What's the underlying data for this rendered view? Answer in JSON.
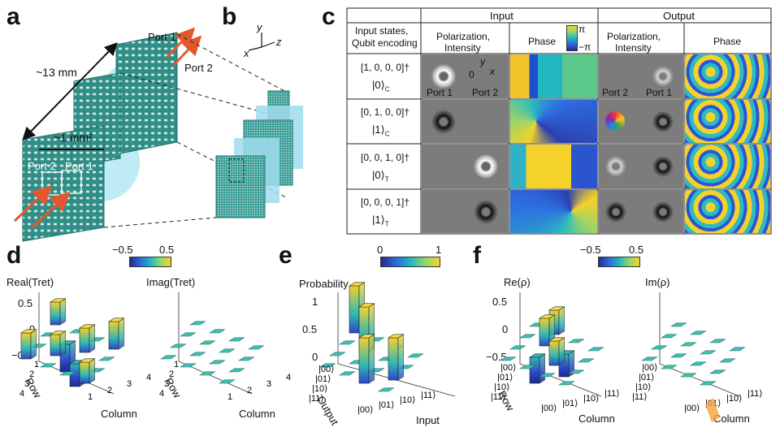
{
  "panels": {
    "a": "a",
    "b": "b",
    "c": "c",
    "d": "d",
    "e": "e",
    "f": "f"
  },
  "panel_a": {
    "port1": "Port 1",
    "port2": "Port 2",
    "size_total": "~13 mm",
    "size_area": "~1 mm²",
    "port2_inner": "Port 2",
    "port1_inner": "Port 1"
  },
  "panel_b": {
    "axis_x": "x",
    "axis_y": "y",
    "axis_z": "z"
  },
  "panel_c": {
    "header_input": "Input",
    "header_output": "Output",
    "col1": "Input states,",
    "col1b": "Qubit encoding",
    "col_pol": "Polarization,",
    "col_pol_b": "Intensity",
    "col_phase": "Phase",
    "col_pol_out": "Polarization,",
    "col_pol_out_b": "Intensity",
    "col_phase_out": "Phase",
    "pi": "π",
    "minus_pi": "−π",
    "axis_y": "y",
    "axis_x": "x",
    "origin": "0",
    "rows": [
      {
        "vector": "[1, 0, 0, 0]†",
        "ket": "|0⟩",
        "sub": "C",
        "in_port_left": "Port 1",
        "in_port_right": "Port 2",
        "out_port_left": "Port 2",
        "out_port_right": "Port 1"
      },
      {
        "vector": "[0, 1, 0, 0]†",
        "ket": "|1⟩",
        "sub": "C"
      },
      {
        "vector": "[0, 0, 1, 0]†",
        "ket": "|0⟩",
        "sub": "T"
      },
      {
        "vector": "[0, 0, 0, 1]†",
        "ket": "|1⟩",
        "sub": "T"
      }
    ]
  },
  "panel_d": {
    "cb_min": "−0.5",
    "cb_max": "0.5",
    "left_title": "Real(Tret)",
    "right_title": "Imag(Tret)",
    "yticks": [
      "0.5",
      "0",
      "−0.5"
    ],
    "row_label": "Row",
    "col_label": "Column",
    "row_ticks": [
      "1",
      "2",
      "3",
      "4"
    ],
    "col_ticks": [
      "1",
      "2",
      "3",
      "4"
    ]
  },
  "panel_e": {
    "cb_min": "0",
    "cb_max": "1",
    "title": "Probability",
    "yticks": [
      "1",
      "0.5",
      "0"
    ],
    "output_label": "Output",
    "input_label": "Input",
    "row_ticks": [
      "|00⟩",
      "|01⟩",
      "|10⟩",
      "|11⟩"
    ],
    "col_ticks": [
      "|00⟩",
      "|01⟩",
      "|10⟩",
      "|11⟩"
    ]
  },
  "panel_f": {
    "cb_min": "−0.5",
    "cb_max": "0.5",
    "left_title": "Re(ρ)",
    "right_title": "Im(ρ)",
    "yticks": [
      "0.5",
      "0",
      "−0.5"
    ],
    "row_label": "Row",
    "col_label": "Column",
    "row_ticks": [
      "|00⟩",
      "|01⟩",
      "|10⟩",
      "|11⟩"
    ],
    "col_ticks": [
      "|00⟩",
      "|01⟩",
      "|10⟩",
      "|11⟩"
    ]
  },
  "colors": {
    "teal": "#3fc1b3",
    "yellow": "#f5d12b",
    "blue": "#2d48c8",
    "navy": "#1b2a8f",
    "arrow": "#e4572e"
  }
}
